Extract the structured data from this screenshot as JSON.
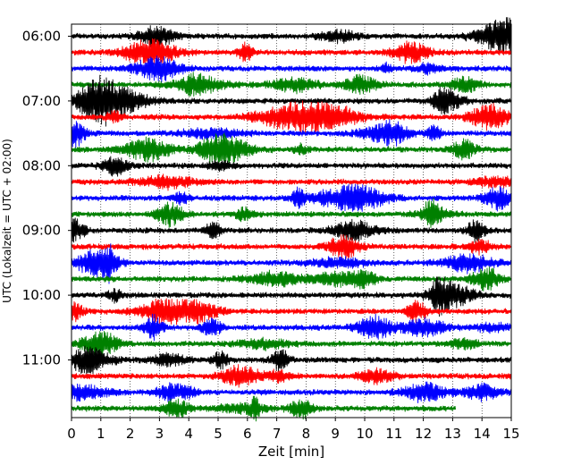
{
  "chart_data": {
    "type": "line",
    "title": "",
    "xlabel": "Zeit  [min]",
    "ylabel": "UTC (Lokalzeit = UTC + 02:00)",
    "xlim": [
      0,
      15
    ],
    "x_ticks": [
      "0",
      "1",
      "2",
      "3",
      "4",
      "5",
      "6",
      "7",
      "8",
      "9",
      "10",
      "11",
      "12",
      "13",
      "14",
      "15"
    ],
    "y_hour_labels": [
      "06:00",
      "07:00",
      "08:00",
      "09:00",
      "10:00",
      "11:00"
    ],
    "trace_interval_minutes": 15,
    "traces_count": 24,
    "last_trace_end_minute": 13.1,
    "grid_x": true,
    "grid_style": "dotted",
    "trace_colors": [
      "#000000",
      "#ff0000",
      "#0000ff",
      "#008000"
    ],
    "color_cycle_names": [
      "black",
      "red",
      "blue",
      "green"
    ]
  }
}
